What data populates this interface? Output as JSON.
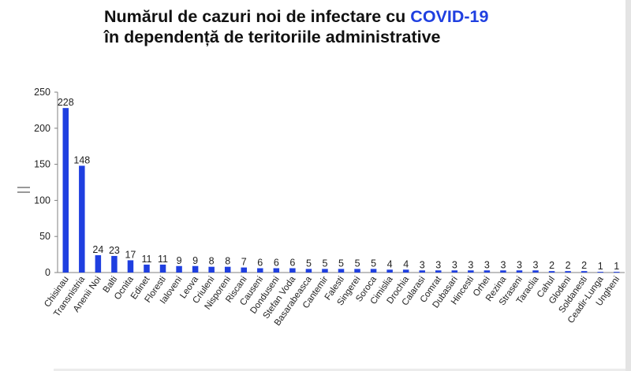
{
  "chart_data": {
    "type": "bar",
    "title_parts": [
      "Numărul de cazuri noi de infectare cu ",
      "COVID-19"
    ],
    "subtitle": "în dependență de teritoriile administrative",
    "xlabel": "",
    "ylabel": "",
    "ylim": [
      0,
      250
    ],
    "yticks": [
      "0",
      "50",
      "100",
      "150",
      "200",
      "250"
    ],
    "grid": false,
    "legend": "none",
    "colors": {
      "bar": "#1f3fe0",
      "accent": "#1f3fe0",
      "text": "#222222"
    },
    "categories": [
      "Chisinau",
      "Transnistria",
      "Anenii Noi",
      "Balti",
      "Ocnita",
      "Edinet",
      "Floresti",
      "Ialoveni",
      "Leova",
      "Criuleni",
      "Nisporeni",
      "Riscani",
      "Causeni",
      "Donduseni",
      "Stefan Voda",
      "Basarabeasca",
      "Cantemir",
      "Falesti",
      "Singerei",
      "Soroca",
      "Cimislia",
      "Drochia",
      "Calarasi",
      "Comrat",
      "Dubasari",
      "Hincesti",
      "Orhei",
      "Rezina",
      "Straseni",
      "Taraclia",
      "Cahul",
      "Glodeni",
      "Soldanesti",
      "Ceadir-Lunga",
      "Ungheni"
    ],
    "values": [
      228,
      148,
      24,
      23,
      17,
      11,
      11,
      9,
      9,
      8,
      8,
      7,
      6,
      6,
      6,
      5,
      5,
      5,
      5,
      5,
      4,
      4,
      3,
      3,
      3,
      3,
      3,
      3,
      3,
      3,
      2,
      2,
      2,
      1,
      1
    ]
  }
}
